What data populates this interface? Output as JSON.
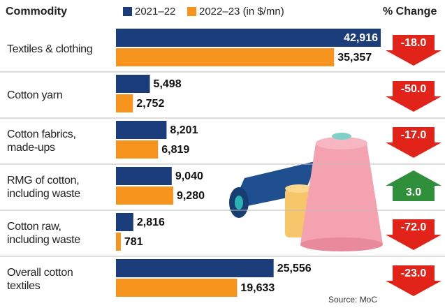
{
  "chart_data": {
    "type": "bar",
    "category_header": "Commodity",
    "categories": [
      "Textiles & clothing",
      "Cotton yarn",
      "Cotton fabrics,\nmade-ups",
      "RMG of cotton,\nincluding waste",
      "Cotton raw,\nincluding waste",
      "Overall cotton\ntextiles"
    ],
    "series": [
      {
        "name": "2021–22",
        "color": "#1b3d7c",
        "values": [
          42916,
          5498,
          8201,
          9040,
          2816,
          25556
        ],
        "value_labels": [
          "42,916",
          "5,498",
          "8,201",
          "9,040",
          "2,816",
          "25,556"
        ]
      },
      {
        "name": "2022–23 (in $/mn)",
        "color": "#f7941d",
        "values": [
          35357,
          2752,
          6819,
          9280,
          781,
          19633
        ],
        "value_labels": [
          "35,357",
          "2,752",
          "6,819",
          "9,280",
          "781",
          "19,633"
        ]
      }
    ],
    "change": {
      "name": "% Change",
      "values": [
        -18.0,
        -50.0,
        -17.0,
        3.0,
        -72.0,
        -23.0
      ],
      "value_labels": [
        "-18.0",
        "-50.0",
        "-17.0",
        "3.0",
        "-72.0",
        "-23.0"
      ],
      "up_color": "#2f8f3a",
      "down_color": "#e2231a"
    },
    "source": "Source: MoC"
  }
}
